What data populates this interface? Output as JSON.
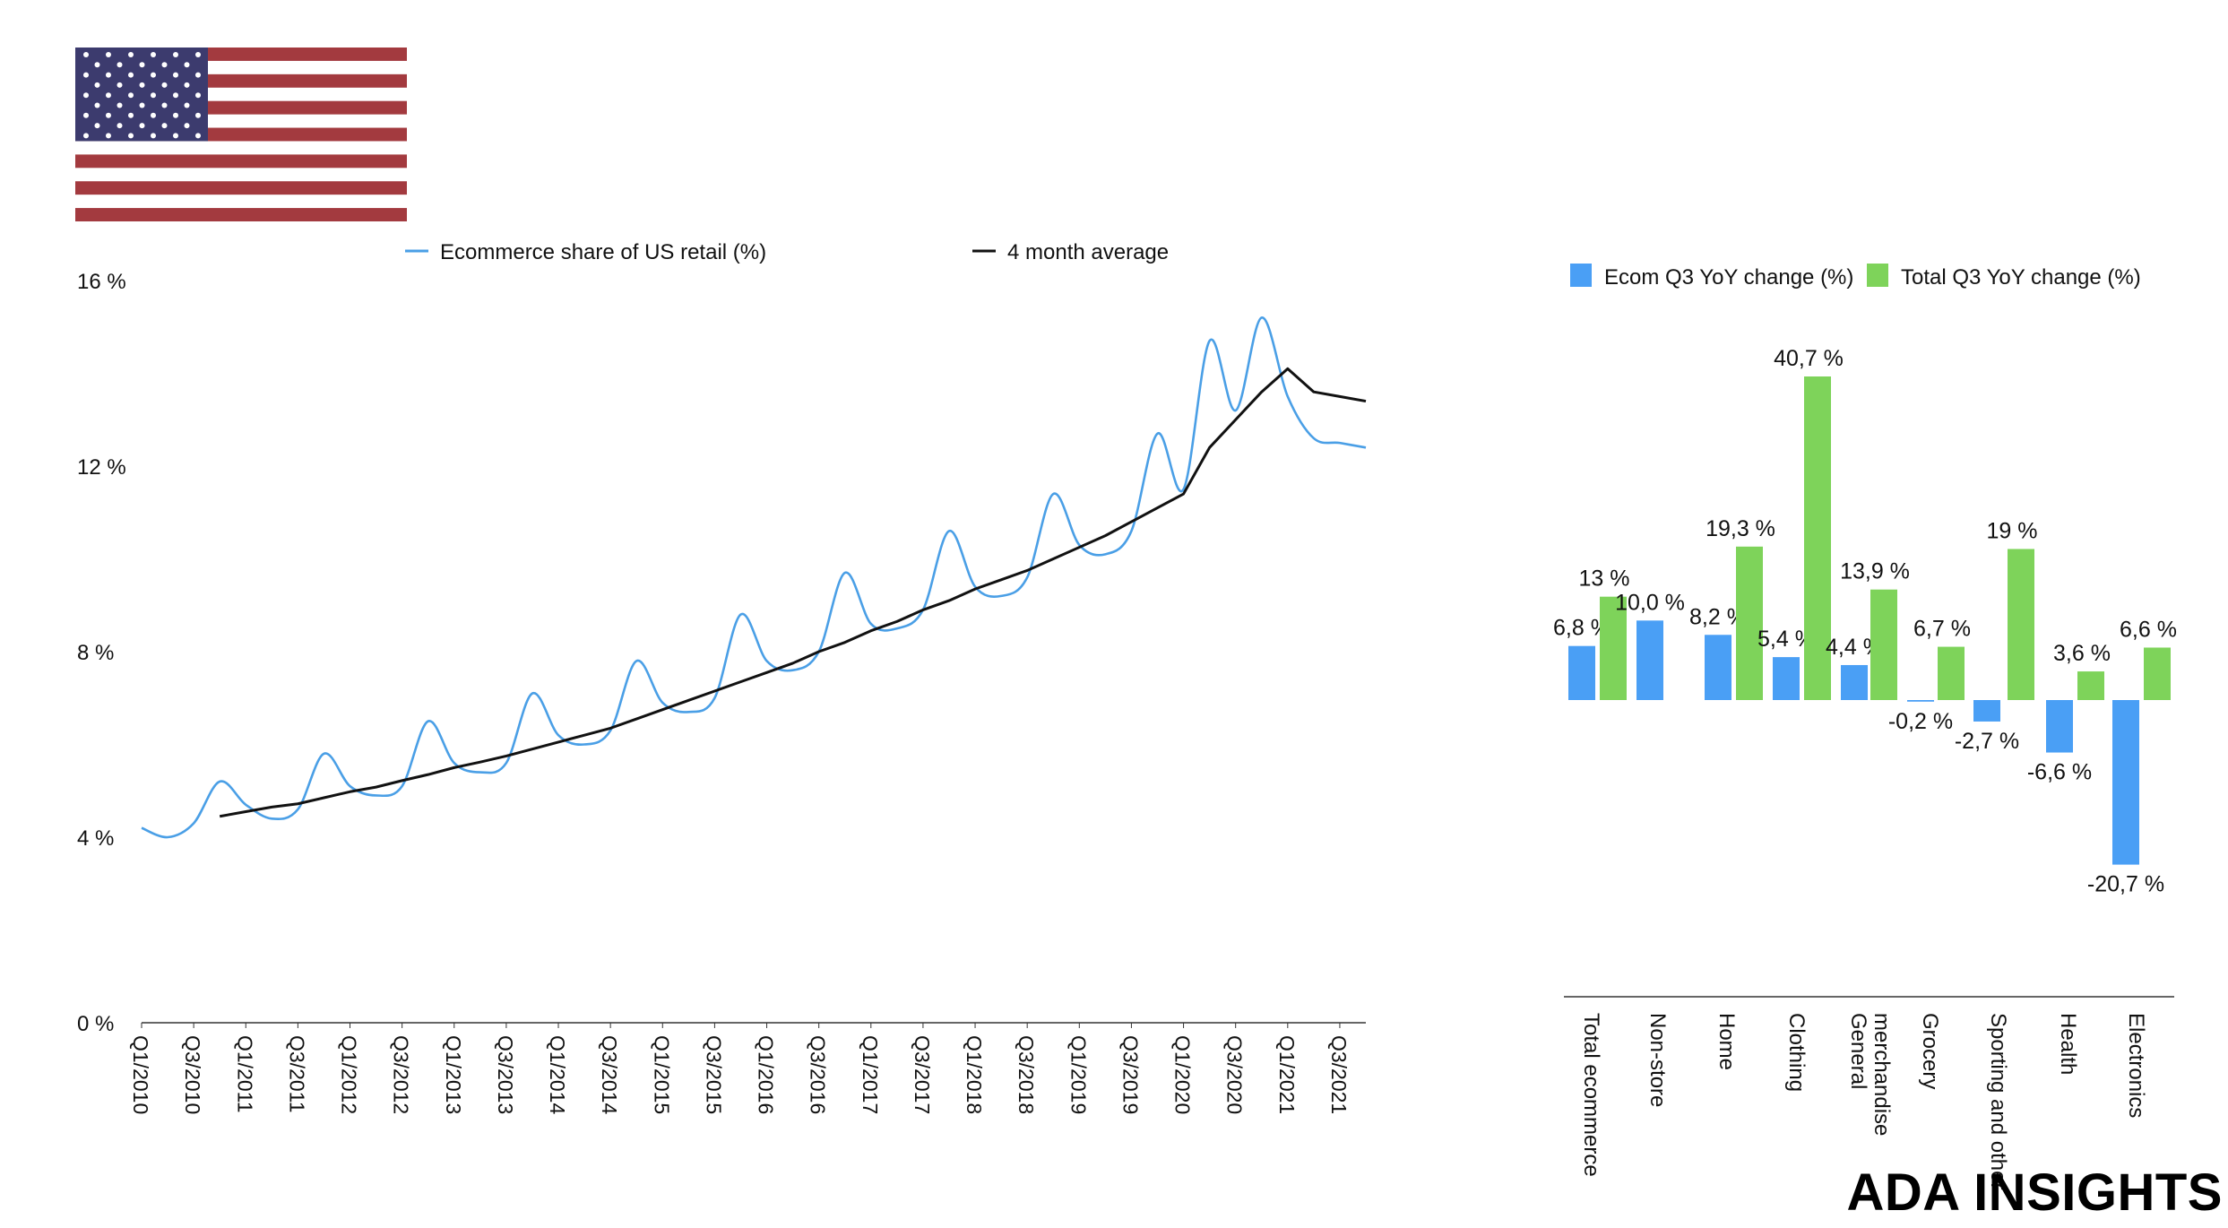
{
  "brand": "ADA INSIGHTS",
  "flag": {
    "icon": "us-flag-icon",
    "colors": {
      "red": "#A33A3F",
      "white": "#FFFFFF",
      "blue": "#3C3B6E"
    }
  },
  "chart_data": [
    {
      "type": "line",
      "title": "",
      "xlabel": "",
      "ylabel": "",
      "ylim": [
        0,
        16
      ],
      "yticks": [
        0,
        4,
        8,
        12,
        16
      ],
      "ytick_labels": [
        "0 %",
        "4 %",
        "8 %",
        "12 %",
        "16 %"
      ],
      "xlim": [
        2010.0,
        2021.75
      ],
      "xtick_positions": [
        2010.0,
        2010.5,
        2011.0,
        2011.5,
        2012.0,
        2012.5,
        2013.0,
        2013.5,
        2014.0,
        2014.5,
        2015.0,
        2015.5,
        2016.0,
        2016.5,
        2017.0,
        2017.5,
        2018.0,
        2018.5,
        2019.0,
        2019.5,
        2020.0,
        2020.5,
        2021.0,
        2021.5
      ],
      "xtick_labels": [
        "Q1/2010",
        "Q3/2010",
        "Q1/2011",
        "Q3/2011",
        "Q1/2012",
        "Q3/2012",
        "Q1/2013",
        "Q3/2013",
        "Q1/2014",
        "Q3/2014",
        "Q1/2015",
        "Q3/2015",
        "Q1/2016",
        "Q3/2016",
        "Q1/2017",
        "Q3/2017",
        "Q1/2018",
        "Q3/2018",
        "Q1/2019",
        "Q3/2019",
        "Q1/2020",
        "Q3/2020",
        "Q1/2021",
        "Q3/2021"
      ],
      "grid": false,
      "legend": "top",
      "series": [
        {
          "name": "Ecommerce share of US retail (%)",
          "color": "#4A9FE6",
          "x": [
            2010.0,
            2010.25,
            2010.5,
            2010.75,
            2011.0,
            2011.25,
            2011.5,
            2011.75,
            2012.0,
            2012.25,
            2012.5,
            2012.75,
            2013.0,
            2013.25,
            2013.5,
            2013.75,
            2014.0,
            2014.25,
            2014.5,
            2014.75,
            2015.0,
            2015.25,
            2015.5,
            2015.75,
            2016.0,
            2016.25,
            2016.5,
            2016.75,
            2017.0,
            2017.25,
            2017.5,
            2017.75,
            2018.0,
            2018.25,
            2018.5,
            2018.75,
            2019.0,
            2019.25,
            2019.5,
            2019.75,
            2020.0,
            2020.25,
            2020.5,
            2020.75,
            2021.0,
            2021.25,
            2021.5,
            2021.75
          ],
          "y": [
            4.2,
            4.0,
            4.3,
            5.2,
            4.7,
            4.4,
            4.6,
            5.8,
            5.1,
            4.9,
            5.1,
            6.5,
            5.6,
            5.4,
            5.6,
            7.1,
            6.2,
            6.0,
            6.3,
            7.8,
            6.9,
            6.7,
            7.0,
            8.8,
            7.8,
            7.6,
            8.0,
            9.7,
            8.6,
            8.5,
            8.9,
            10.6,
            9.4,
            9.2,
            9.6,
            11.4,
            10.3,
            10.1,
            10.6,
            12.7,
            11.5,
            14.7,
            13.2,
            15.2,
            13.5,
            12.6,
            12.5,
            12.4
          ]
        },
        {
          "name": "4 month average",
          "color": "#111111",
          "x": [
            2010.75,
            2011.0,
            2011.25,
            2011.5,
            2011.75,
            2012.0,
            2012.25,
            2012.5,
            2012.75,
            2013.0,
            2013.25,
            2013.5,
            2013.75,
            2014.0,
            2014.25,
            2014.5,
            2014.75,
            2015.0,
            2015.25,
            2015.5,
            2015.75,
            2016.0,
            2016.25,
            2016.5,
            2016.75,
            2017.0,
            2017.25,
            2017.5,
            2017.75,
            2018.0,
            2018.25,
            2018.5,
            2018.75,
            2019.0,
            2019.25,
            2019.5,
            2019.75,
            2020.0,
            2020.25,
            2020.5,
            2020.75,
            2021.0,
            2021.25,
            2021.5,
            2021.75
          ],
          "y": [
            4.45,
            4.55,
            4.65,
            4.72,
            4.85,
            4.98,
            5.08,
            5.22,
            5.35,
            5.5,
            5.62,
            5.75,
            5.9,
            6.05,
            6.2,
            6.35,
            6.55,
            6.75,
            6.95,
            7.15,
            7.35,
            7.55,
            7.75,
            8.0,
            8.2,
            8.45,
            8.65,
            8.9,
            9.1,
            9.35,
            9.55,
            9.75,
            10.0,
            10.25,
            10.5,
            10.8,
            11.1,
            11.4,
            12.4,
            13.0,
            13.6,
            14.1,
            13.6,
            13.5,
            13.4
          ]
        }
      ]
    },
    {
      "type": "bar",
      "title": "",
      "xlabel": "",
      "ylabel": "",
      "ylim": [
        -25,
        45
      ],
      "grid": false,
      "legend": "top",
      "categories": [
        "Total ecommerce",
        "Non-store",
        "Home",
        "Clothing",
        "General merchandise",
        "Grocery",
        "Sporting and other",
        "Health",
        "Electronics"
      ],
      "category_lines": [
        [
          "Total ecommerce"
        ],
        [
          "Non-store"
        ],
        [
          "Home"
        ],
        [
          "Clothing"
        ],
        [
          "General",
          "merchandise"
        ],
        [
          "Grocery"
        ],
        [
          "Sporting and other"
        ],
        [
          "Health"
        ],
        [
          "Electronics"
        ]
      ],
      "series": [
        {
          "name": "Ecom Q3 YoY change (%)",
          "color": "#4A9FF5",
          "values": [
            6.8,
            10.0,
            8.2,
            5.4,
            4.4,
            -0.2,
            -2.7,
            -6.6,
            -20.7
          ],
          "labels": [
            "6,8 %",
            "10,0 %",
            "8,2 %",
            "5,4 %",
            "4,4 %",
            "-0,2 %",
            "-2,7 %",
            "-6,6 %",
            "-20,7 %"
          ]
        },
        {
          "name": "Total Q3 YoY change (%)",
          "color": "#7ED35A",
          "values": [
            13,
            null,
            19.3,
            40.7,
            13.9,
            6.7,
            19,
            3.6,
            6.6
          ],
          "labels": [
            "13 %",
            "",
            "19,3 %",
            "40,7 %",
            "13,9 %",
            "6,7 %",
            "19 %",
            "3,6 %",
            "6,6 %"
          ]
        }
      ]
    }
  ]
}
